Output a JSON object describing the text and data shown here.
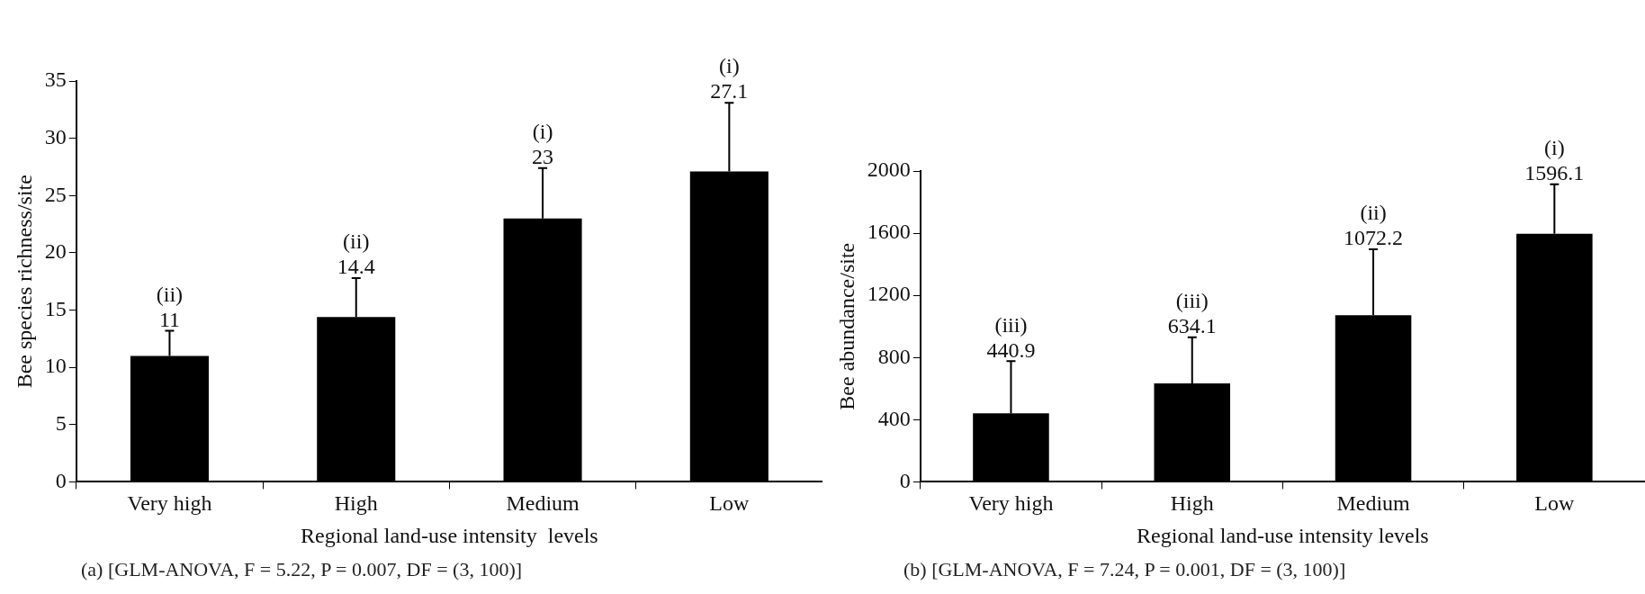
{
  "chart_data": [
    {
      "type": "bar",
      "categories": [
        "Very high",
        "High",
        "Medium",
        "Low"
      ],
      "values": [
        11,
        14.4,
        23,
        27.1
      ],
      "errors": [
        [
          11,
          13.2
        ],
        [
          14.4,
          17.8
        ],
        [
          23,
          27.4
        ],
        [
          27.1,
          33.1
        ]
      ],
      "color": "#000000",
      "data_labels": true,
      "ylim": [
        0,
        35
      ],
      "yticks": [
        0,
        5,
        10,
        15,
        20,
        25,
        30,
        35
      ],
      "xlabel": "Regional land-use intensity  levels",
      "ylabel": "Bee species richness/site",
      "grid": false,
      "legend": false,
      "annotations": [
        "(ii)",
        "(ii)",
        "(i)",
        "(i)",
        "(a)  [GLM-ANOVA, F = 5.22, P = 0.007, DF = (3, 100)]"
      ]
    },
    {
      "type": "bar",
      "categories": [
        "Very high",
        "High",
        "Medium",
        "Low"
      ],
      "values": [
        440.9,
        634.1,
        1072.2,
        1596.1
      ],
      "errors": [
        [
          440.9,
          777
        ],
        [
          634.1,
          930
        ],
        [
          1072.2,
          1496
        ],
        [
          1596.1,
          1915
        ]
      ],
      "color": "#000000",
      "data_labels": true,
      "ylim": [
        0,
        2000
      ],
      "yticks": [
        0,
        400,
        800,
        1200,
        1600,
        2000
      ],
      "xlabel": "Regional land-use intensity levels",
      "ylabel": "Bee abundance/site",
      "grid": false,
      "legend": false,
      "annotations": [
        "(iii)",
        "(iii)",
        "(ii)",
        "(i)",
        "(b)  [GLM-ANOVA, F = 7.24, P = 0.001, DF = (3, 100)]"
      ]
    }
  ]
}
